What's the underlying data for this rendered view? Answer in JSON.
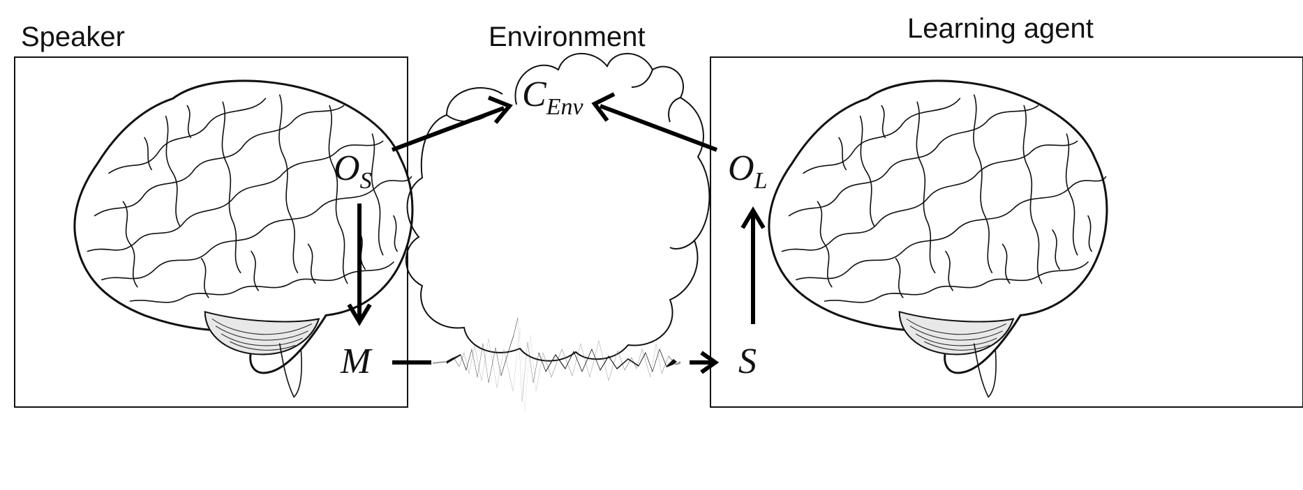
{
  "headings": {
    "speaker": "Speaker",
    "environment": "Environment",
    "learning_agent": "Learning agent"
  },
  "labels": {
    "observation_speaker": {
      "base": "O",
      "sub": "S"
    },
    "message": "M",
    "environment_context": {
      "base": "C",
      "sub": "Env"
    },
    "signal": "S",
    "observation_learner": {
      "base": "O",
      "sub": "L"
    }
  }
}
